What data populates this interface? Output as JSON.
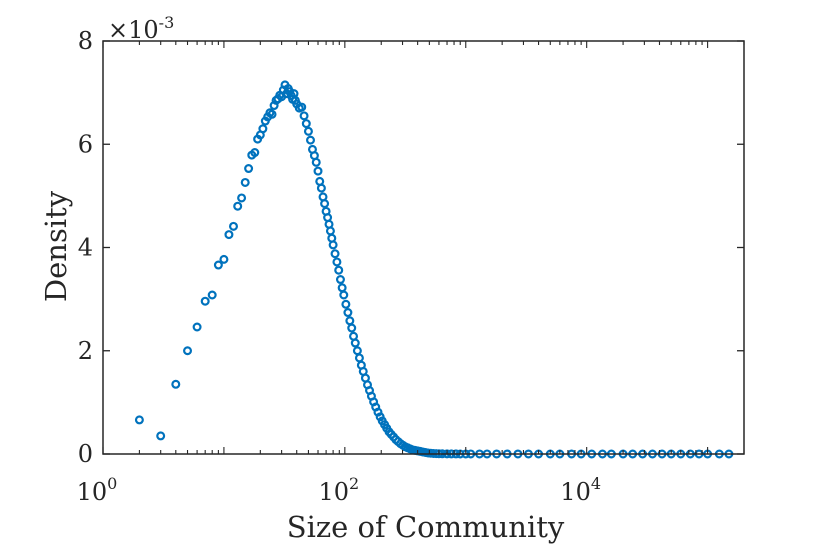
{
  "chart_data": {
    "type": "scatter",
    "title": "",
    "xlabel": "Size of Community",
    "ylabel": "Density",
    "x_scale": "log",
    "xlim": [
      1,
      200000
    ],
    "ylim": [
      0,
      0.008
    ],
    "y_multiplier_label": {
      "base": "×10",
      "exponent": "-3"
    },
    "x_ticks": [
      {
        "value": 1,
        "base": "10",
        "exponent": "0"
      },
      {
        "value": 100,
        "base": "10",
        "exponent": "2"
      },
      {
        "value": 10000,
        "base": "10",
        "exponent": "4"
      }
    ],
    "y_ticks": [
      {
        "value": 0,
        "label": "0"
      },
      {
        "value": 0.002,
        "label": "2"
      },
      {
        "value": 0.004,
        "label": "4"
      },
      {
        "value": 0.006,
        "label": "6"
      },
      {
        "value": 0.008,
        "label": "8"
      }
    ],
    "marker": "circle-open",
    "color": "#0072BD",
    "grid": false,
    "box": true,
    "series": [
      {
        "name": "density",
        "x": [
          2,
          3,
          4,
          5,
          6,
          7,
          8,
          9,
          10,
          11,
          12,
          13,
          14,
          15,
          16,
          17,
          18,
          19,
          20,
          21,
          22,
          23,
          24,
          25,
          26,
          27,
          28,
          29,
          30,
          31,
          32,
          33,
          34,
          35,
          36,
          37,
          38,
          39,
          40,
          42,
          44,
          46,
          48,
          50,
          52,
          54,
          56,
          58,
          60,
          62,
          64,
          66,
          68,
          70,
          72,
          74,
          76,
          78,
          80,
          83,
          86,
          89,
          92,
          95,
          98,
          102,
          106,
          110,
          114,
          118,
          122,
          127,
          132,
          137,
          142,
          148,
          154,
          160,
          166,
          173,
          180,
          188,
          196,
          204,
          213,
          222,
          232,
          242,
          253,
          264,
          276,
          289,
          302,
          316,
          331,
          347,
          364,
          382,
          401,
          421,
          442,
          465,
          489,
          514,
          541,
          570,
          600,
          640,
          700,
          760,
          830,
          900,
          1000,
          1100,
          1300,
          1500,
          1800,
          2200,
          2700,
          3300,
          4000,
          5000,
          6000,
          7500,
          9000,
          11000,
          13500,
          16000,
          20000,
          24000,
          29000,
          35000,
          42000,
          50000,
          60000,
          72000,
          85000,
          100000,
          125000,
          150000
        ],
        "y": [
          0.00066,
          0.00035,
          0.00135,
          0.002,
          0.00246,
          0.00296,
          0.00308,
          0.00366,
          0.00377,
          0.00425,
          0.00441,
          0.0048,
          0.00496,
          0.00526,
          0.00553,
          0.00579,
          0.00584,
          0.0061,
          0.00618,
          0.0063,
          0.00645,
          0.00653,
          0.00661,
          0.00658,
          0.00675,
          0.00685,
          0.00688,
          0.00695,
          0.00692,
          0.00705,
          0.00715,
          0.00698,
          0.00708,
          0.00702,
          0.00694,
          0.00687,
          0.00698,
          0.00685,
          0.00678,
          0.0067,
          0.00672,
          0.00655,
          0.0064,
          0.00625,
          0.00608,
          0.0059,
          0.00578,
          0.00565,
          0.00548,
          0.00528,
          0.00515,
          0.00498,
          0.00485,
          0.0047,
          0.00458,
          0.00445,
          0.00432,
          0.00418,
          0.00405,
          0.00388,
          0.00372,
          0.00356,
          0.00338,
          0.00322,
          0.00308,
          0.0029,
          0.00274,
          0.00258,
          0.00244,
          0.00228,
          0.00215,
          0.002,
          0.00186,
          0.00172,
          0.0016,
          0.00147,
          0.00134,
          0.00123,
          0.00112,
          0.00101,
          0.00091,
          0.00081,
          0.00072,
          0.00064,
          0.00057,
          0.0005,
          0.00043,
          0.00038,
          0.00033,
          0.00028,
          0.00024,
          0.0002,
          0.00017,
          0.00014,
          0.00012,
          0.0001,
          8e-05,
          7e-05,
          6e-05,
          5e-05,
          4e-05,
          3e-05,
          2e-05,
          1.5e-05,
          1e-05,
          8e-06,
          6e-06,
          4e-06,
          3e-06,
          2e-06,
          1.5e-06,
          1e-06,
          8e-07,
          6e-07,
          4e-07,
          3e-07,
          2e-07,
          1e-07,
          1e-07,
          1e-07,
          0,
          0,
          0,
          0,
          0,
          0,
          0,
          0,
          0,
          0,
          0,
          0,
          0,
          0,
          0,
          0,
          0,
          0,
          0,
          0
        ]
      }
    ]
  }
}
